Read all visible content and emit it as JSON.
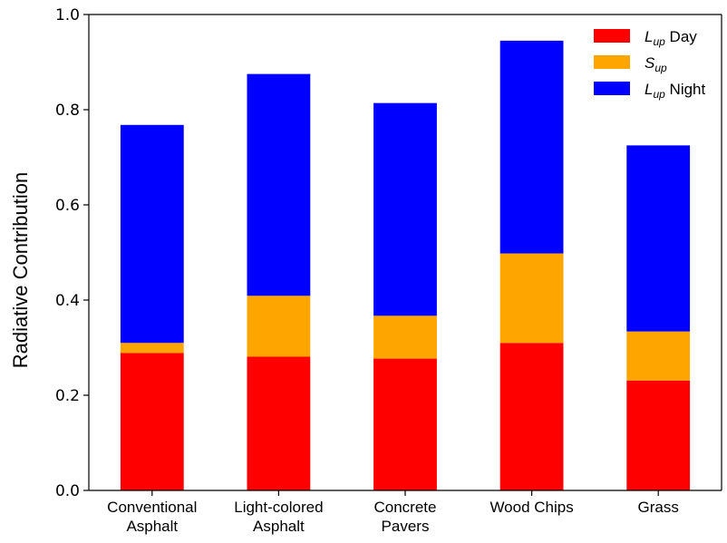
{
  "chart_data": {
    "type": "bar",
    "stacked": true,
    "categories": [
      [
        "Conventional",
        "Asphalt"
      ],
      [
        "Light-colored",
        "Asphalt"
      ],
      [
        "Concrete",
        "Pavers"
      ],
      [
        "Wood Chips"
      ],
      [
        "Grass"
      ]
    ],
    "series": [
      {
        "name": "L_up Day",
        "legend_main": "L",
        "legend_sub": "up",
        "legend_suffix": " Day",
        "color": "#ff0000",
        "values": [
          0.289,
          0.281,
          0.277,
          0.31,
          0.231
        ]
      },
      {
        "name": "S_up",
        "legend_main": "S",
        "legend_sub": "up",
        "legend_suffix": "",
        "color": "#ffa500",
        "values": [
          0.021,
          0.128,
          0.09,
          0.188,
          0.103
        ]
      },
      {
        "name": "L_up Night",
        "legend_main": "L",
        "legend_sub": "up",
        "legend_suffix": " Night",
        "color": "#0000ff",
        "values": [
          0.458,
          0.466,
          0.447,
          0.447,
          0.391
        ]
      }
    ],
    "title": "",
    "xlabel": "",
    "ylabel": "Radiative Contribution",
    "ylim": [
      0,
      1.0
    ],
    "yticks": [
      "0.0",
      "0.2",
      "0.4",
      "0.6",
      "0.8",
      "1.0"
    ],
    "grid": false,
    "legend_position": "top-right"
  }
}
